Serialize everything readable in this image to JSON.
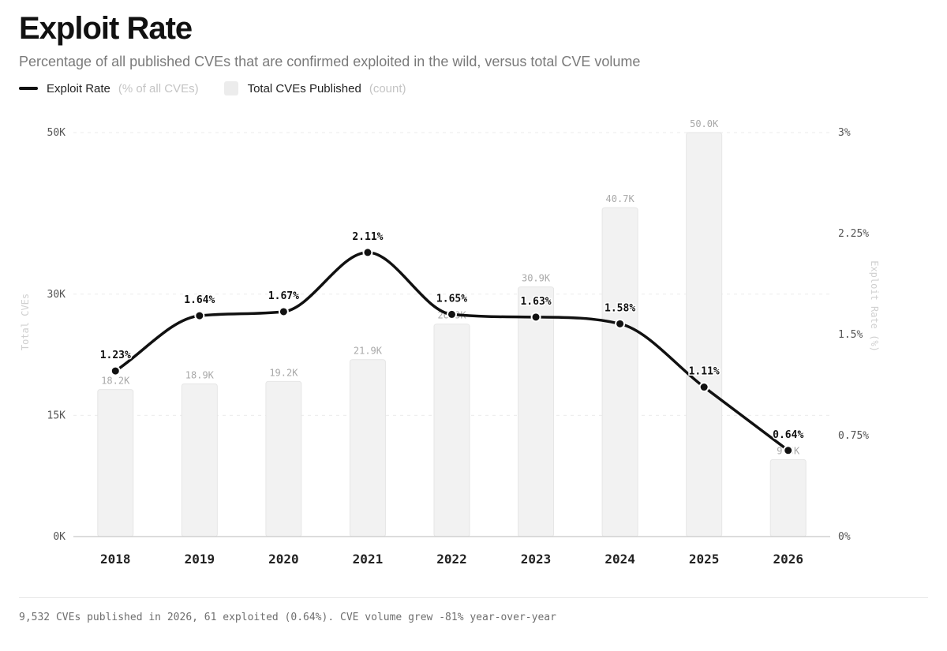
{
  "header": {
    "title": "Exploit Rate",
    "subtitle": "Percentage of all published CVEs that are confirmed exploited in the wild, versus total CVE volume"
  },
  "legend": {
    "line_name": "Exploit Rate",
    "line_unit": "(% of all CVEs)",
    "bar_name": "Total CVEs Published",
    "bar_unit": "(count)"
  },
  "chart_data": {
    "type": "bar",
    "categories": [
      "2018",
      "2019",
      "2020",
      "2021",
      "2022",
      "2023",
      "2024",
      "2025",
      "2026"
    ],
    "series": [
      {
        "name": "Total CVEs Published",
        "type": "bar",
        "axis": "left",
        "values": [
          18200,
          18900,
          19200,
          21900,
          26300,
          30900,
          40700,
          50000,
          9532
        ],
        "labels": [
          "18.2K",
          "18.9K",
          "19.2K",
          "21.9K",
          "26.3K",
          "30.9K",
          "40.7K",
          "50.0K",
          "9.5K"
        ]
      },
      {
        "name": "Exploit Rate",
        "type": "line",
        "axis": "right",
        "values": [
          1.23,
          1.64,
          1.67,
          2.11,
          1.65,
          1.63,
          1.58,
          1.11,
          0.64
        ],
        "labels": [
          "1.23%",
          "1.64%",
          "1.67%",
          "2.11%",
          "1.65%",
          "1.63%",
          "1.58%",
          "1.11%",
          "0.64%"
        ]
      }
    ],
    "y_left": {
      "label": "Total CVEs",
      "ticks": [
        0,
        15000,
        30000,
        50000
      ],
      "tick_labels": [
        "0K",
        "15K",
        "30K",
        "50K"
      ],
      "range": [
        0,
        50000
      ]
    },
    "y_right": {
      "label": "Exploit Rate (%)",
      "ticks": [
        0,
        0.75,
        1.5,
        2.25,
        3
      ],
      "tick_labels": [
        "0%",
        "0.75%",
        "1.5%",
        "2.25%",
        "3%"
      ],
      "range": [
        0,
        3
      ]
    },
    "grid": true,
    "legend_position": "top-left"
  },
  "footer": {
    "note": "9,532 CVEs published in 2026, 61 exploited (0.64%). CVE volume grew -81% year-over-year"
  },
  "colors": {
    "line": "#111111",
    "bar": "#f2f2f2",
    "bar_stroke": "#e6e6e6",
    "grid": "#ebebeb",
    "axis": "#d0d0d0",
    "tick_text": "#555555",
    "bar_label": "#a8a8a8",
    "axis_title": "#d0d0d0"
  }
}
